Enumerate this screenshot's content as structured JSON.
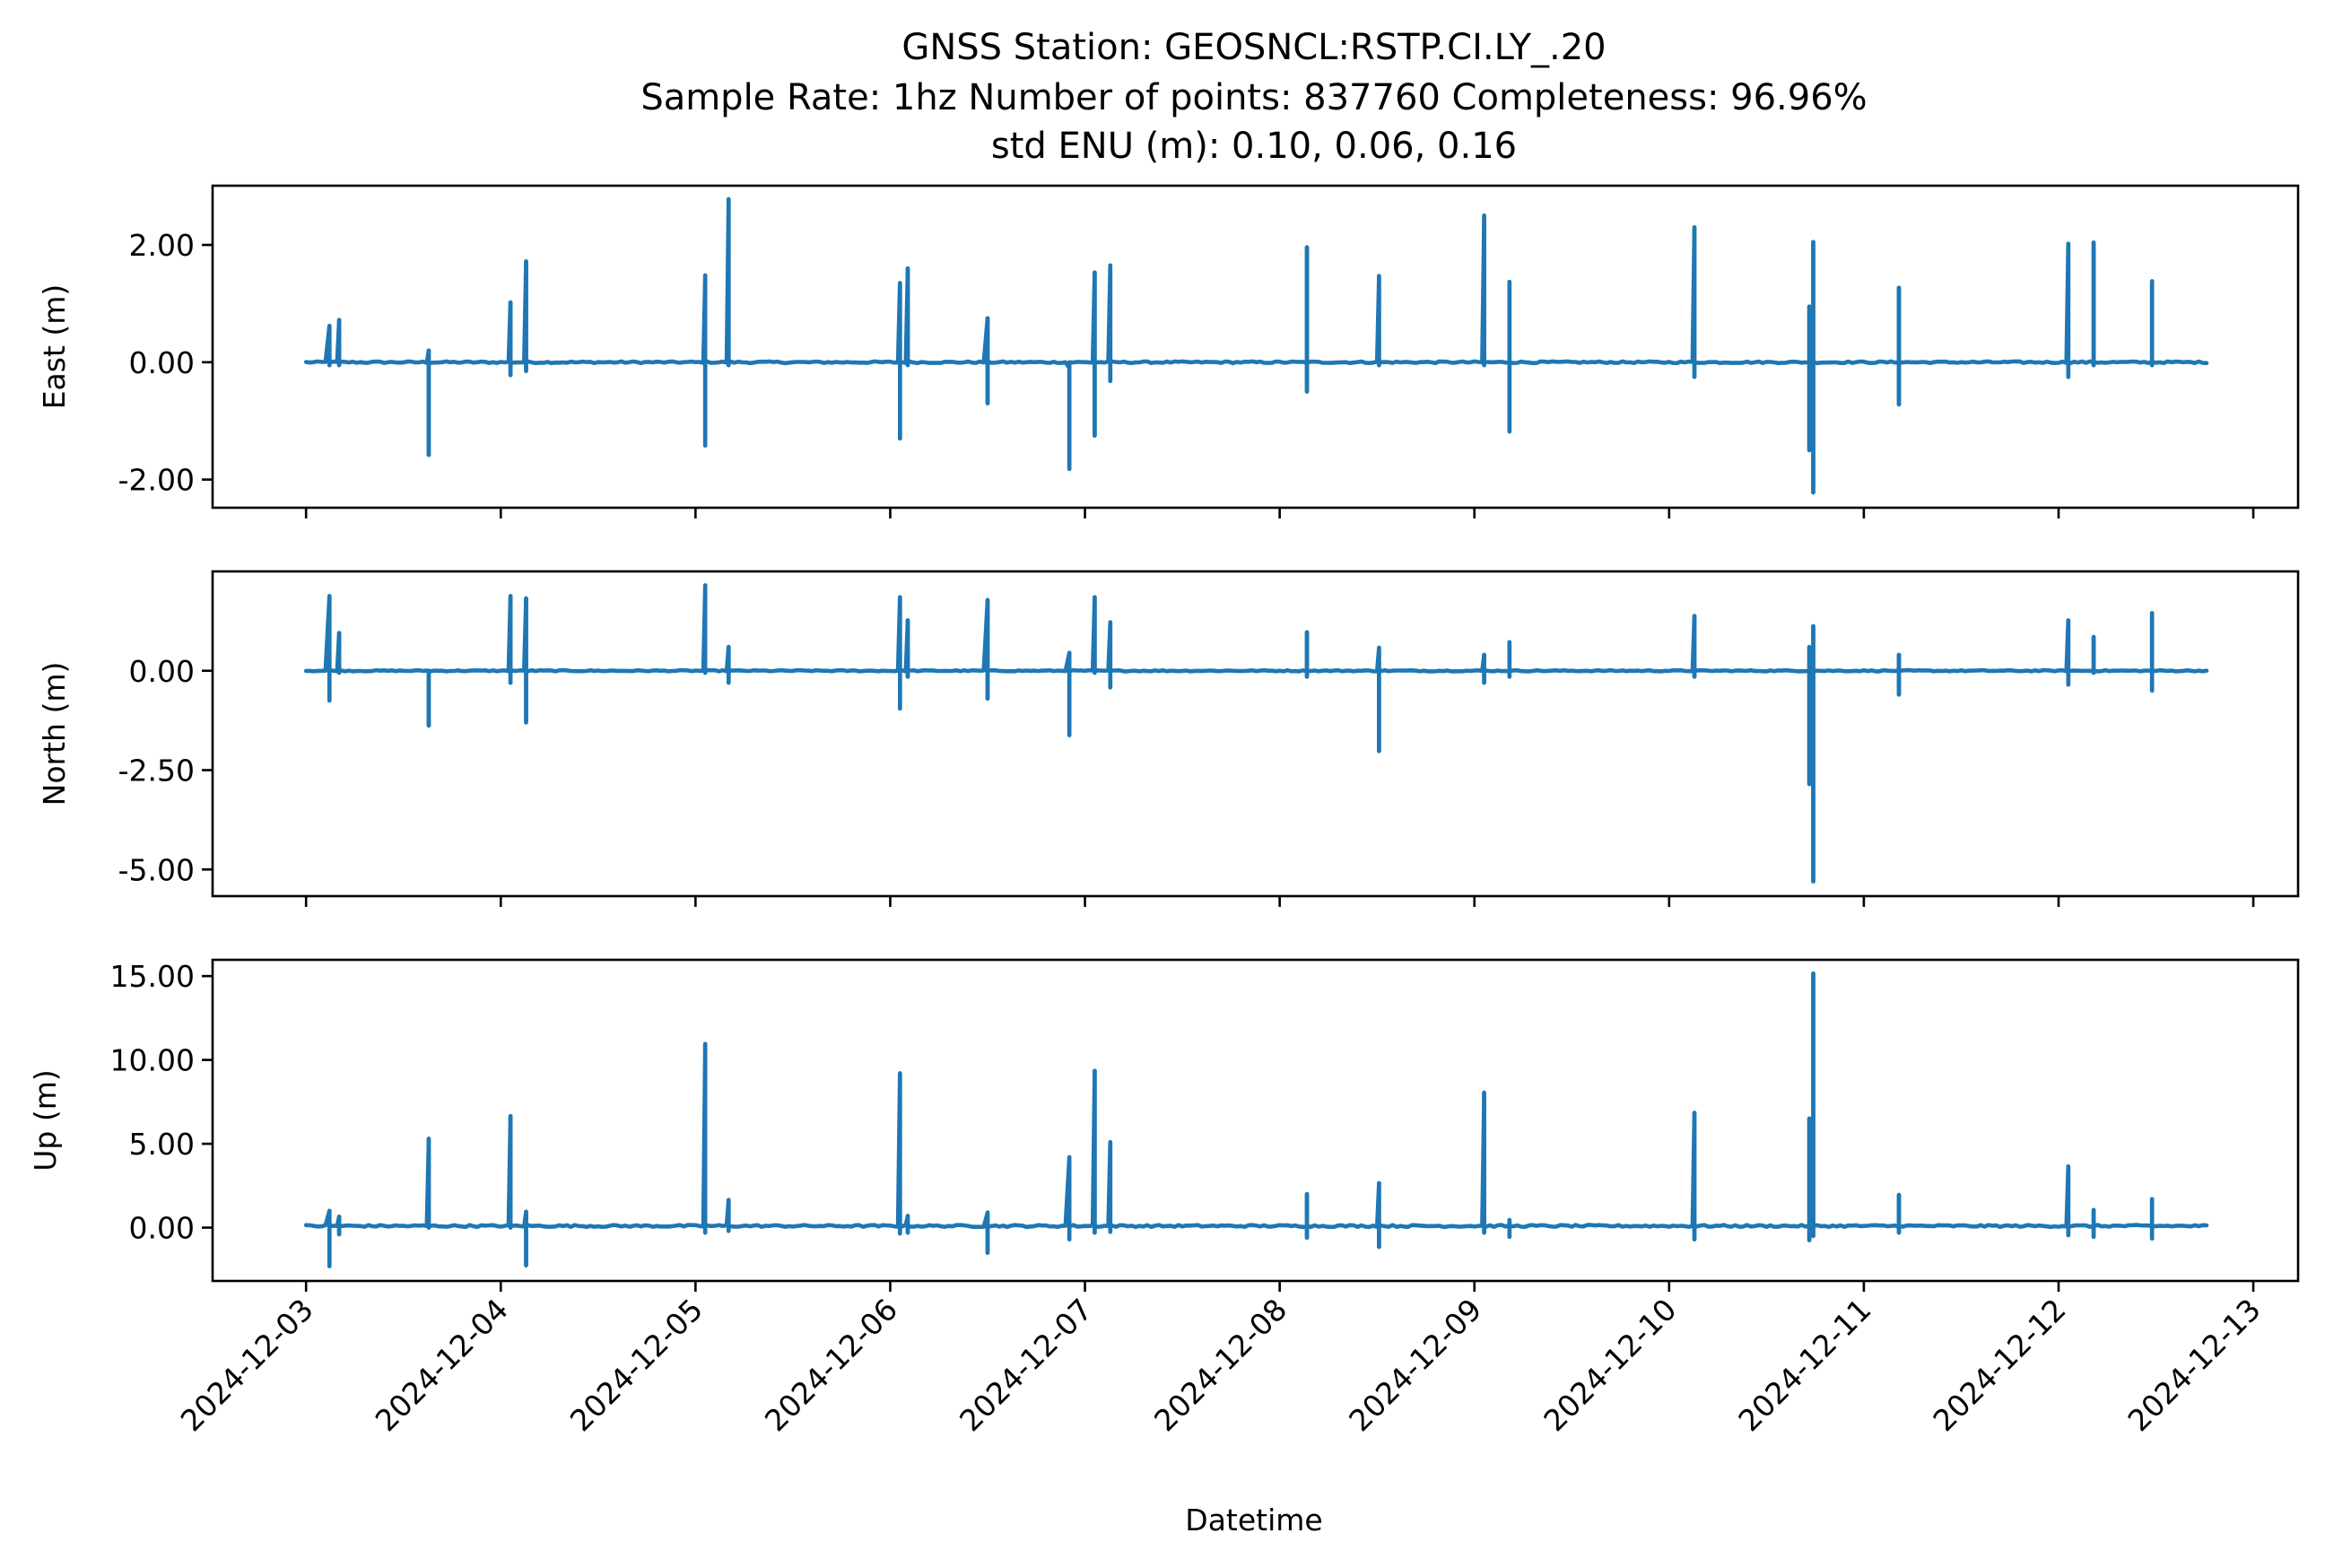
{
  "chart_data": {
    "type": "line",
    "title": {
      "line1": "GNSS Station: GEOSNCL:RSTP.CI.LY_.20",
      "line2": "Sample Rate: 1hz   Number of points: 837760    Completeness:  96.96%",
      "line3": "std ENU (m):  0.10, 0.06, 0.16"
    },
    "station": "GEOSNCL:RSTP.CI.LY_.20",
    "sample_rate": "1hz",
    "number_of_points": 837760,
    "completeness_percent": 96.96,
    "std_enu_m": [
      0.1,
      0.06,
      0.16
    ],
    "xlabel": "Datetime",
    "x_start": "2024-12-03",
    "x_units": "days since 2024-12-03 00:00",
    "xlim": [
      -0.48,
      10.23
    ],
    "x_data_range": [
      0.0,
      9.76
    ],
    "x_ticks": [
      {
        "value": 0,
        "label": "2024-12-03"
      },
      {
        "value": 1,
        "label": "2024-12-04"
      },
      {
        "value": 2,
        "label": "2024-12-05"
      },
      {
        "value": 3,
        "label": "2024-12-06"
      },
      {
        "value": 4,
        "label": "2024-12-07"
      },
      {
        "value": 5,
        "label": "2024-12-08"
      },
      {
        "value": 6,
        "label": "2024-12-09"
      },
      {
        "value": 7,
        "label": "2024-12-10"
      },
      {
        "value": 8,
        "label": "2024-12-11"
      },
      {
        "value": 9,
        "label": "2024-12-12"
      },
      {
        "value": 10,
        "label": "2024-12-13"
      }
    ],
    "color": "#1f77b4",
    "grid": false,
    "legend": "none",
    "subplots": [
      {
        "name": "East",
        "ylabel": "East (m)",
        "ylim": [
          -2.48,
          3.01
        ],
        "y_ticks": [
          {
            "value": 2,
            "label": "2.00"
          },
          {
            "value": 0,
            "label": "0.00"
          },
          {
            "value": -2,
            "label": "-2.00"
          }
        ],
        "baseline": 0.0,
        "spikes": [
          {
            "t": 0.12,
            "max": 0.62,
            "min": -0.05
          },
          {
            "t": 0.17,
            "max": 0.72,
            "min": -0.05
          },
          {
            "t": 0.63,
            "max": 0.2,
            "min": -1.58
          },
          {
            "t": 1.05,
            "max": 1.02,
            "min": -0.22
          },
          {
            "t": 1.13,
            "max": 1.72,
            "min": -0.15
          },
          {
            "t": 2.05,
            "max": 1.48,
            "min": -1.42
          },
          {
            "t": 2.17,
            "max": 2.78,
            "min": -0.05
          },
          {
            "t": 3.05,
            "max": 1.35,
            "min": -1.3
          },
          {
            "t": 3.09,
            "max": 1.6,
            "min": -0.05
          },
          {
            "t": 3.5,
            "max": 0.75,
            "min": -0.7
          },
          {
            "t": 3.92,
            "max": -0.1,
            "min": -1.82
          },
          {
            "t": 4.05,
            "max": 1.53,
            "min": -1.25
          },
          {
            "t": 4.13,
            "max": 1.65,
            "min": -0.32
          },
          {
            "t": 5.14,
            "max": 1.96,
            "min": -0.5
          },
          {
            "t": 5.51,
            "max": 1.47,
            "min": -0.05
          },
          {
            "t": 6.05,
            "max": 2.5,
            "min": -0.05
          },
          {
            "t": 6.18,
            "max": 1.37,
            "min": -1.18
          },
          {
            "t": 7.13,
            "max": 2.3,
            "min": -0.25
          },
          {
            "t": 7.72,
            "max": 0.95,
            "min": -1.5
          },
          {
            "t": 7.74,
            "max": 2.05,
            "min": -2.22
          },
          {
            "t": 8.18,
            "max": 1.27,
            "min": -0.72
          },
          {
            "t": 9.05,
            "max": 2.02,
            "min": -0.25
          },
          {
            "t": 9.18,
            "max": 2.04,
            "min": -0.05
          },
          {
            "t": 9.48,
            "max": 1.38,
            "min": -0.05
          }
        ]
      },
      {
        "name": "North",
        "ylabel": "North (m)",
        "ylim": [
          -5.67,
          2.5
        ],
        "y_ticks": [
          {
            "value": 0,
            "label": "0.00"
          },
          {
            "value": -2.5,
            "label": "-2.50"
          },
          {
            "value": -5,
            "label": "-5.00"
          }
        ],
        "baseline": 0.0,
        "spikes": [
          {
            "t": 0.12,
            "max": 1.88,
            "min": -0.75
          },
          {
            "t": 0.17,
            "max": 0.95,
            "min": -0.05
          },
          {
            "t": 0.63,
            "max": 0.0,
            "min": -1.38
          },
          {
            "t": 1.05,
            "max": 1.88,
            "min": -0.3
          },
          {
            "t": 1.13,
            "max": 1.82,
            "min": -1.3
          },
          {
            "t": 2.05,
            "max": 2.15,
            "min": -0.05
          },
          {
            "t": 2.17,
            "max": 0.6,
            "min": -0.3
          },
          {
            "t": 3.05,
            "max": 1.85,
            "min": -0.95
          },
          {
            "t": 3.09,
            "max": 1.27,
            "min": -0.15
          },
          {
            "t": 3.5,
            "max": 1.78,
            "min": -0.7
          },
          {
            "t": 3.92,
            "max": 0.45,
            "min": -1.62
          },
          {
            "t": 4.05,
            "max": 1.85,
            "min": -0.05
          },
          {
            "t": 4.13,
            "max": 1.22,
            "min": -0.42
          },
          {
            "t": 5.14,
            "max": 0.97,
            "min": -0.15
          },
          {
            "t": 5.51,
            "max": 0.58,
            "min": -2.02
          },
          {
            "t": 6.05,
            "max": 0.4,
            "min": -0.3
          },
          {
            "t": 6.18,
            "max": 0.72,
            "min": -0.15
          },
          {
            "t": 7.13,
            "max": 1.38,
            "min": -0.15
          },
          {
            "t": 7.72,
            "max": 0.6,
            "min": -2.85
          },
          {
            "t": 7.74,
            "max": 1.12,
            "min": -5.3
          },
          {
            "t": 8.18,
            "max": 0.4,
            "min": -0.6
          },
          {
            "t": 9.05,
            "max": 1.27,
            "min": -0.35
          },
          {
            "t": 9.18,
            "max": 0.85,
            "min": -0.05
          },
          {
            "t": 9.48,
            "max": 1.45,
            "min": -0.5
          }
        ]
      },
      {
        "name": "Up",
        "ylabel": "Up (m)",
        "ylim": [
          -3.18,
          15.97
        ],
        "y_ticks": [
          {
            "value": 15,
            "label": "15.00"
          },
          {
            "value": 10,
            "label": "10.00"
          },
          {
            "value": 5,
            "label": "5.00"
          },
          {
            "value": 0,
            "label": "0.00"
          }
        ],
        "baseline": 0.1,
        "spikes": [
          {
            "t": 0.12,
            "max": 1.0,
            "min": -2.3
          },
          {
            "t": 0.17,
            "max": 0.65,
            "min": -0.4
          },
          {
            "t": 0.63,
            "max": 5.3,
            "min": 0.0
          },
          {
            "t": 1.05,
            "max": 6.65,
            "min": 0.0
          },
          {
            "t": 1.13,
            "max": 0.95,
            "min": -2.25
          },
          {
            "t": 2.05,
            "max": 10.95,
            "min": -0.3
          },
          {
            "t": 2.17,
            "max": 1.65,
            "min": -0.2
          },
          {
            "t": 3.05,
            "max": 9.2,
            "min": -0.35
          },
          {
            "t": 3.09,
            "max": 0.7,
            "min": -0.3
          },
          {
            "t": 3.5,
            "max": 0.9,
            "min": -1.5
          },
          {
            "t": 3.92,
            "max": 4.2,
            "min": -0.7
          },
          {
            "t": 4.05,
            "max": 9.35,
            "min": -0.3
          },
          {
            "t": 4.13,
            "max": 5.1,
            "min": -0.25
          },
          {
            "t": 5.14,
            "max": 2.0,
            "min": -0.6
          },
          {
            "t": 5.51,
            "max": 2.65,
            "min": -1.15
          },
          {
            "t": 6.05,
            "max": 8.05,
            "min": -0.3
          },
          {
            "t": 6.18,
            "max": 0.45,
            "min": -0.55
          },
          {
            "t": 7.13,
            "max": 6.85,
            "min": -0.7
          },
          {
            "t": 7.72,
            "max": 6.5,
            "min": -0.75
          },
          {
            "t": 7.74,
            "max": 15.15,
            "min": -0.5
          },
          {
            "t": 8.18,
            "max": 1.95,
            "min": -0.3
          },
          {
            "t": 9.05,
            "max": 3.65,
            "min": -0.45
          },
          {
            "t": 9.18,
            "max": 1.05,
            "min": -0.55
          },
          {
            "t": 9.48,
            "max": 1.7,
            "min": -0.65
          }
        ]
      }
    ]
  }
}
